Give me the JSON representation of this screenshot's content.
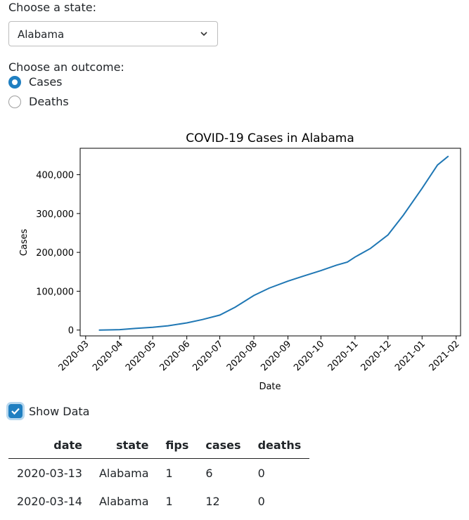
{
  "state_select": {
    "label": "Choose a state:",
    "selected": "Alabama"
  },
  "outcome": {
    "label": "Choose an outcome:",
    "options": [
      "Cases",
      "Deaths"
    ],
    "selected": "Cases"
  },
  "show_data": {
    "label": "Show Data",
    "checked": true
  },
  "colors": {
    "accent": "#1f7fc1",
    "line": "#1f77b4"
  },
  "chart_data": {
    "type": "line",
    "title": "COVID-19 Cases in Alabama",
    "xlabel": "Date",
    "ylabel": "Cases",
    "xlim": [
      "2020-02-25",
      "2021-02-05"
    ],
    "ylim": [
      -15000,
      468000
    ],
    "x_ticks": [
      "2020-03",
      "2020-04",
      "2020-05",
      "2020-06",
      "2020-07",
      "2020-08",
      "2020-09",
      "2020-10",
      "2020-11",
      "2020-12",
      "2021-01",
      "2021-02"
    ],
    "y_ticks": [
      0,
      100000,
      200000,
      300000,
      400000
    ],
    "y_tick_labels": [
      "0",
      "100,000",
      "200,000",
      "300,000",
      "400,000"
    ],
    "grid": false,
    "series": [
      {
        "x": [
          "2020-03-13",
          "2020-03-25",
          "2020-04-01",
          "2020-04-15",
          "2020-05-01",
          "2020-05-15",
          "2020-06-01",
          "2020-06-15",
          "2020-07-01",
          "2020-07-15",
          "2020-08-01",
          "2020-08-15",
          "2020-09-01",
          "2020-09-15",
          "2020-10-01",
          "2020-10-15",
          "2020-10-25",
          "2020-11-01",
          "2020-11-15",
          "2020-12-01",
          "2020-12-15",
          "2021-01-01",
          "2021-01-15",
          "2021-01-25"
        ],
        "y": [
          6,
          500,
          1100,
          4200,
          7000,
          11000,
          18500,
          27000,
          38500,
          59000,
          89000,
          108000,
          126000,
          139000,
          153000,
          167000,
          175000,
          188000,
          210000,
          245000,
          296000,
          365000,
          425000,
          448000
        ]
      }
    ]
  },
  "table": {
    "columns": [
      "date",
      "state",
      "fips",
      "cases",
      "deaths"
    ],
    "rows": [
      [
        "2020-03-13",
        "Alabama",
        "1",
        "6",
        "0"
      ],
      [
        "2020-03-14",
        "Alabama",
        "1",
        "12",
        "0"
      ]
    ]
  }
}
